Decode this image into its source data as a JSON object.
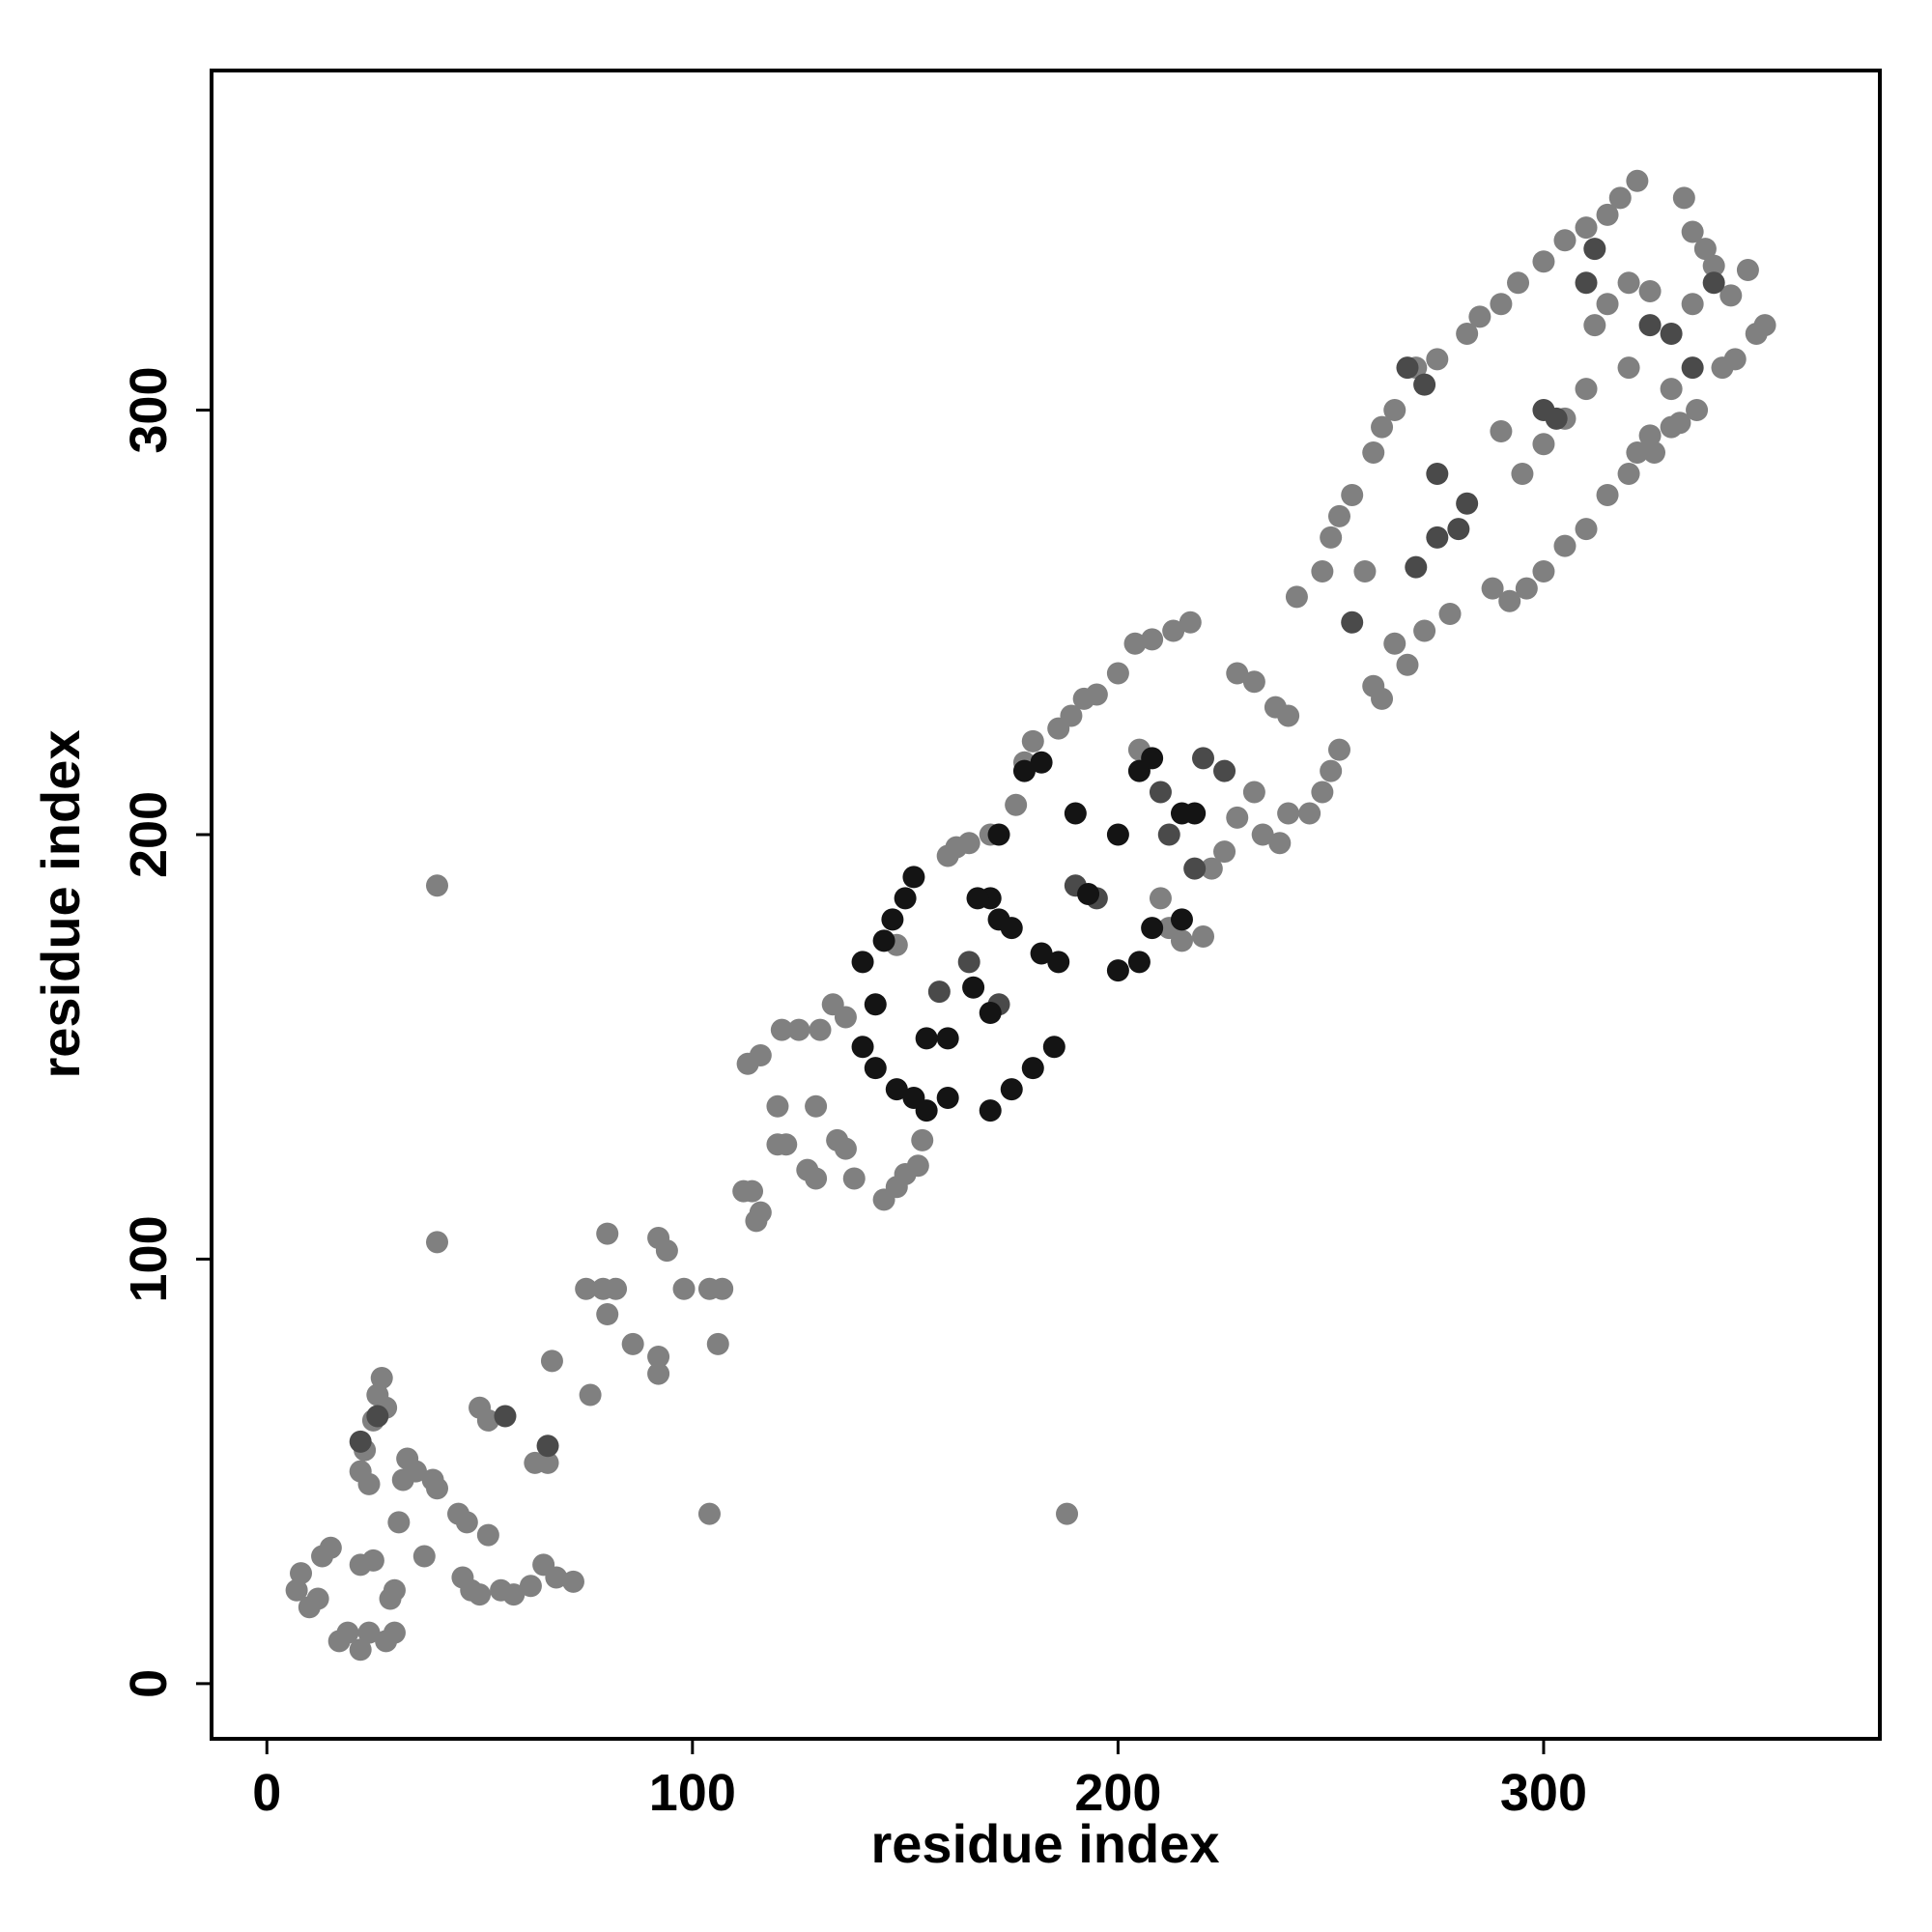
{
  "chart_data": {
    "type": "scatter",
    "xlabel": "residue index",
    "ylabel": "residue index",
    "xlim": [
      -13,
      379
    ],
    "ylim": [
      -13,
      380
    ],
    "xticks": [
      0,
      100,
      200,
      300
    ],
    "yticks": [
      0,
      100,
      200,
      300
    ],
    "series": [
      {
        "color": "#808080",
        "x": [
          7,
          8,
          10,
          12,
          13,
          15,
          17,
          19,
          22,
          24,
          22,
          25,
          28,
          30,
          29,
          30,
          22,
          23,
          25,
          26,
          27,
          28,
          24,
          31,
          32,
          33,
          35,
          37,
          39,
          40,
          45,
          47,
          46,
          48,
          50,
          52,
          50,
          52,
          55,
          58,
          62,
          63,
          65,
          66,
          68,
          72,
          67,
          75,
          76,
          79,
          80,
          80,
          82,
          86,
          92,
          92,
          92,
          94,
          98,
          104,
          106,
          107,
          104,
          40,
          40,
          188
        ],
        "values": [
          22,
          26,
          18,
          20,
          30,
          32,
          10,
          12,
          8,
          12,
          28,
          29,
          10,
          12,
          20,
          22,
          50,
          55,
          62,
          68,
          72,
          65,
          47,
          38,
          48,
          53,
          50,
          30,
          48,
          46,
          40,
          38,
          25,
          22,
          21,
          35,
          65,
          62,
          22,
          21,
          23,
          52,
          28,
          52,
          25,
          24,
          76,
          93,
          68,
          93,
          87,
          106,
          93,
          80,
          105,
          77,
          73,
          102,
          93,
          93,
          80,
          93,
          40,
          104,
          188,
          40
        ]
      },
      {
        "color": "#808080",
        "x": [
          112,
          114,
          115,
          116,
          113,
          116,
          120,
          120,
          122,
          121,
          125,
          127,
          129,
          129,
          130,
          134,
          136,
          138,
          133,
          136,
          145,
          148,
          150,
          153,
          154,
          148,
          160,
          162,
          165,
          170,
          176,
          178,
          180,
          186,
          189,
          192,
          195,
          200,
          204,
          205,
          208,
          213,
          217,
          210,
          212,
          215,
          220,
          222,
          225,
          228,
          232,
          234,
          238,
          240,
          245,
          248,
          250,
          252,
          228,
          232,
          237,
          240,
          242,
          248,
          250,
          252,
          255,
          258,
          260,
          262,
          265,
          268,
          272,
          278,
          260,
          262,
          265,
          270,
          275,
          282,
          285,
          290,
          294,
          300,
          305,
          310,
          315,
          318,
          322,
          315,
          320,
          322,
          325,
          330,
          336,
          342,
          345,
          350,
          352,
          348,
          344,
          340,
          335,
          333,
          320,
          310,
          305,
          300,
          295,
          290,
          288,
          292,
          296,
          300,
          305,
          310,
          315,
          320,
          326,
          332,
          330,
          335,
          338,
          325,
          312
        ],
        "values": [
          116,
          116,
          109,
          111,
          146,
          148,
          136,
          127,
          127,
          154,
          154,
          121,
          136,
          119,
          154,
          128,
          126,
          119,
          160,
          157,
          114,
          117,
          120,
          122,
          128,
          174,
          195,
          197,
          198,
          200,
          207,
          217,
          222,
          225,
          228,
          232,
          233,
          238,
          245,
          220,
          246,
          248,
          250,
          185,
          178,
          175,
          176,
          192,
          196,
          204,
          210,
          200,
          198,
          205,
          205,
          210,
          215,
          220,
          238,
          236,
          230,
          228,
          256,
          262,
          270,
          275,
          280,
          262,
          235,
          232,
          245,
          240,
          248,
          252,
          290,
          296,
          300,
          310,
          312,
          318,
          322,
          325,
          330,
          335,
          340,
          343,
          346,
          350,
          354,
          325,
          310,
          290,
          294,
          296,
          300,
          310,
          312,
          318,
          320,
          333,
          327,
          334,
          342,
          350,
          330,
          305,
          298,
          292,
          285,
          295,
          258,
          255,
          258,
          262,
          268,
          272,
          280,
          285,
          290,
          297,
          305,
          325,
          338,
          328,
          320
        ]
      },
      {
        "color": "#4a4a4a",
        "x": [
          22,
          26,
          56,
          66,
          270,
          275,
          280,
          275,
          282,
          268,
          272,
          300,
          303,
          310,
          312,
          325,
          330,
          335,
          340,
          212,
          218,
          220,
          225,
          210,
          190,
          195,
          172,
          165,
          158,
          255
        ],
        "values": [
          57,
          63,
          63,
          56,
          263,
          270,
          272,
          285,
          278,
          310,
          306,
          300,
          298,
          330,
          338,
          320,
          318,
          310,
          330,
          200,
          192,
          218,
          215,
          210,
          188,
          185,
          160,
          170,
          163,
          250
        ]
      },
      {
        "color": "#141414",
        "x": [
          140,
          143,
          145,
          147,
          150,
          152,
          148,
          152,
          155,
          160,
          170,
          175,
          180,
          185,
          170,
          172,
          175,
          182,
          186,
          178,
          182,
          190,
          200,
          205,
          208,
          205,
          208,
          215,
          218,
          215,
          200,
          193,
          160,
          170,
          155,
          140,
          143,
          167,
          172,
          166
        ],
        "values": [
          170,
          160,
          175,
          180,
          185,
          190,
          140,
          138,
          135,
          138,
          135,
          140,
          145,
          150,
          185,
          180,
          178,
          172,
          170,
          215,
          217,
          205,
          168,
          170,
          178,
          215,
          218,
          205,
          205,
          180,
          200,
          186,
          152,
          158,
          152,
          150,
          145,
          185,
          200,
          164
        ]
      }
    ]
  }
}
